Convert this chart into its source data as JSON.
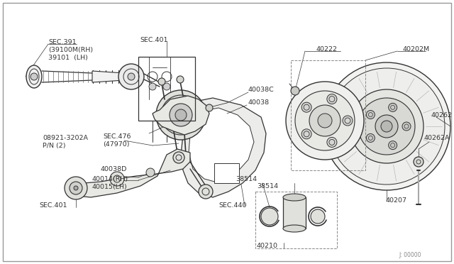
{
  "bg_color": "#ffffff",
  "line_color": "#333333",
  "text_color": "#333333",
  "border_color": "#aaaaaa",
  "part_labels": {
    "SEC391": "SEC.391\n(39100M(RH)\n39101  (LH)",
    "SEC401_top": "SEC.401",
    "40038C": "40038C",
    "40038": "40038",
    "SEC476": "SEC.476\n(47970)",
    "08921": "08921-3202A\nP/N (2)",
    "40038D": "40038D",
    "40014": "40014(RH)\n40015(LH)",
    "SEC401_bot": "SEC.401",
    "SEC440": "SEC.440",
    "40222": "40222",
    "40202M": "40202M",
    "40262": "40262",
    "40262A": "40262A",
    "40207": "40207",
    "38514_top": "38514",
    "38514_bot": "38514",
    "40210": "40210",
    "J00000": "J: 00000"
  }
}
